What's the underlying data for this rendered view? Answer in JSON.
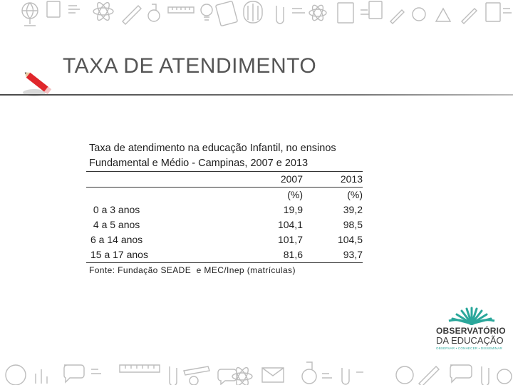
{
  "slide": {
    "title": "TAXA DE ATENDIMENTO"
  },
  "table": {
    "caption_line1": "Taxa de atendimento na educação Infantil, no ensinos",
    "caption_line2": "Fundamental e Médio - Campinas, 2007 e 2013",
    "header_year": [
      "2007",
      "2013"
    ],
    "header_unit": [
      "(%)",
      "(%)"
    ],
    "rows": [
      {
        "label": " 0 a 3 anos",
        "y2007": "19,9",
        "y2013": "39,2"
      },
      {
        "label": " 4 a 5 anos",
        "y2007": "104,1",
        "y2013": "98,5"
      },
      {
        "label": "6 a 14 anos",
        "y2007": "101,7",
        "y2013": "104,5"
      },
      {
        "label": "15 a 17 anos",
        "y2007": "81,6",
        "y2013": "93,7"
      }
    ],
    "source": "Fonte: Fundação SEADE  e MEC/Inep (matrículas)"
  },
  "logo": {
    "line1": "OBSERVATÓRIO",
    "line2": "DA EDUCAÇÃO",
    "tagline": "OBSERVAR • CONHECER • DISSEMINAR",
    "color_teal": "#2aa79b",
    "color_dark": "#3a3a3a"
  },
  "decor": {
    "doodle_icons": [
      "globe-icon",
      "pencil-icon",
      "book-icon",
      "atom-icon",
      "flask-icon",
      "ruler-icon",
      "speech-bubble-icon",
      "paperclip-icon",
      "envelope-icon",
      "apple-icon"
    ],
    "doodle_color": "#b8b8b8",
    "pencil_color": "#e0262b"
  }
}
